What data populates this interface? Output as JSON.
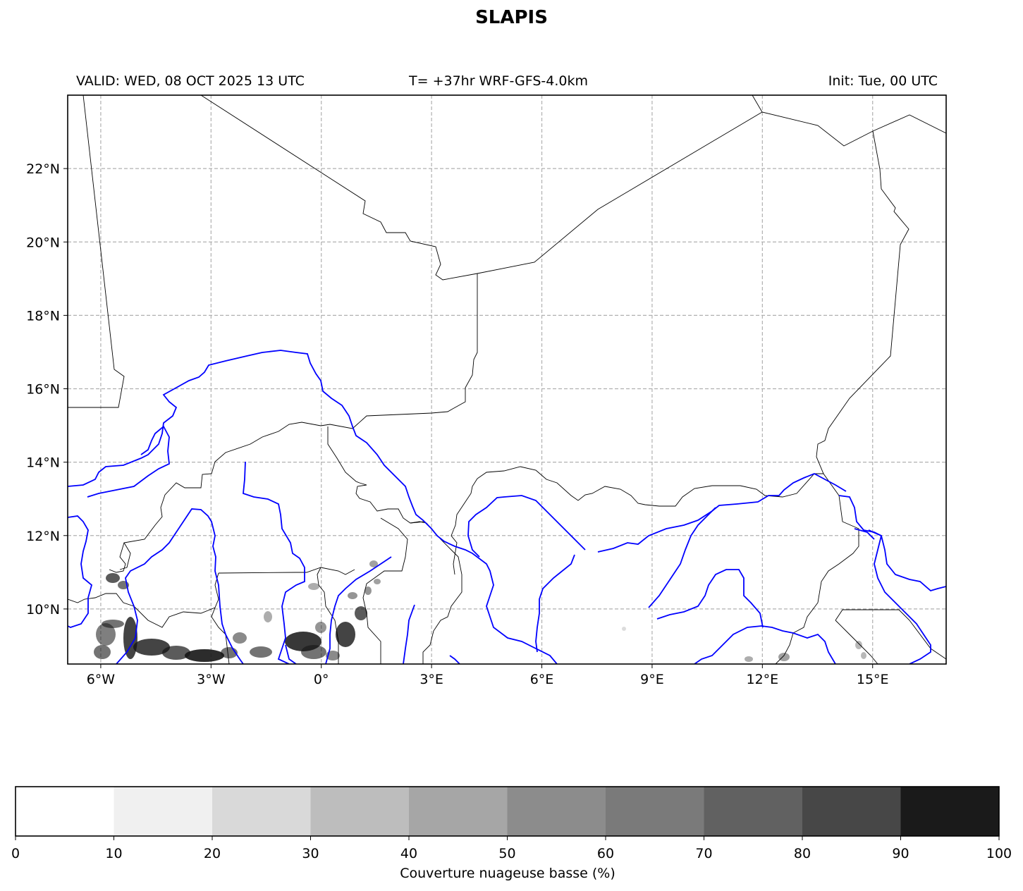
{
  "title": "SLAPIS",
  "header": {
    "valid": "VALID: WED, 08 OCT 2025 13 UTC",
    "run": "T= +37hr WRF-GFS-4.0km",
    "init": "Init: Tue, 00 UTC"
  },
  "map": {
    "lon_range": [
      -6.9,
      17.0
    ],
    "lat_range": [
      8.5,
      24.0
    ],
    "lon_ticks": [
      "6°W",
      "3°W",
      "0°",
      "3°E",
      "6°E",
      "9°E",
      "12°E",
      "15°E"
    ],
    "lon_tick_values": [
      -6,
      -3,
      0,
      3,
      6,
      9,
      12,
      15
    ],
    "lat_ticks": [
      "22°N",
      "20°N",
      "18°N",
      "16°N",
      "14°N",
      "12°N",
      "10°N"
    ],
    "lat_tick_values": [
      22,
      20,
      18,
      16,
      14,
      12,
      10
    ],
    "grid": true,
    "border_color": "#000000",
    "river_color": "#0000ff",
    "cloud_color": "#111111"
  },
  "colorbar": {
    "ticks": [
      "0",
      "10",
      "20",
      "30",
      "40",
      "50",
      "60",
      "70",
      "80",
      "90",
      "100"
    ],
    "colors": [
      "#ffffff",
      "#f0f0f0",
      "#d9d9d9",
      "#bdbdbd",
      "#a6a6a6",
      "#8c8c8c",
      "#7a7a7a",
      "#616161",
      "#474747",
      "#1a1a1a"
    ],
    "label": "Couverture nuageuse basse (%)"
  }
}
